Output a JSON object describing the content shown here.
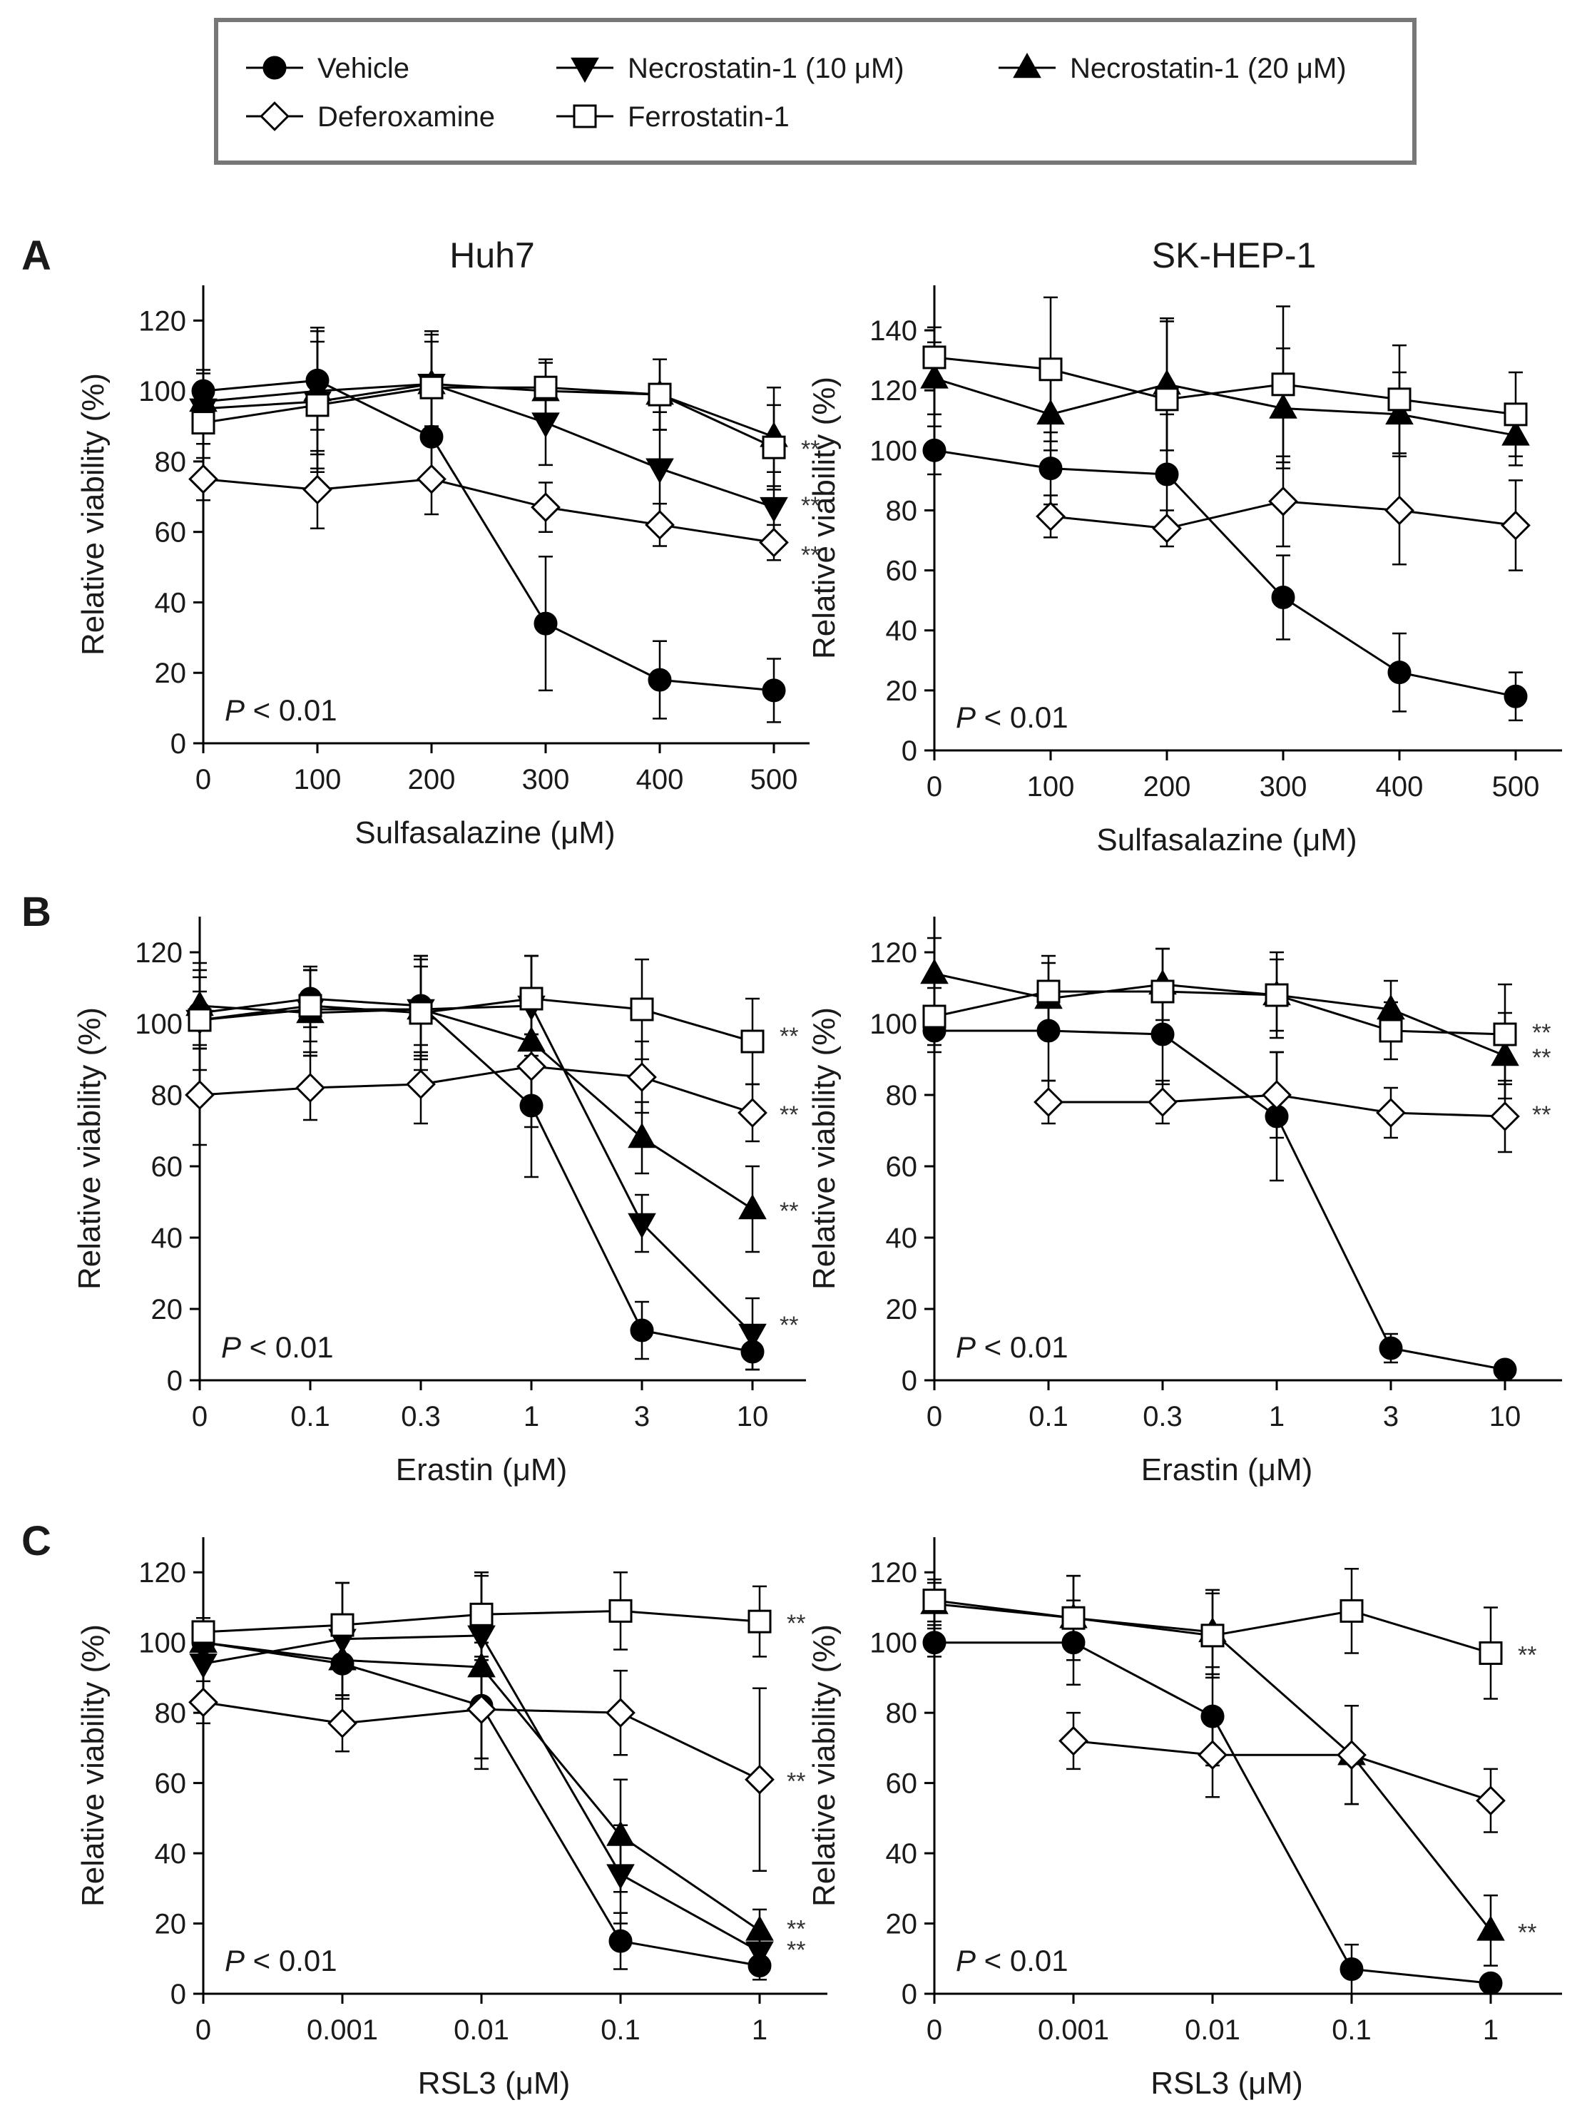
{
  "legend": {
    "entries": [
      {
        "key": "vehicle",
        "label": "Vehicle",
        "marker": "circle",
        "fill": "#000000"
      },
      {
        "key": "nec10",
        "label": "Necrostatin-1 (10 μM)",
        "marker": "triangle-down",
        "fill": "#000000"
      },
      {
        "key": "nec20",
        "label": "Necrostatin-1 (20 μM)",
        "marker": "triangle-up",
        "fill": "#000000"
      },
      {
        "key": "dfo",
        "label": "Deferoxamine",
        "marker": "diamond",
        "fill": "#ffffff"
      },
      {
        "key": "fer",
        "label": "Ferrostatin-1",
        "marker": "square",
        "fill": "#ffffff"
      }
    ]
  },
  "ylabel": "Relative viability (%)",
  "chart_data": [
    {
      "id": "A-huh7",
      "panel": "A",
      "title": "Huh7",
      "type": "line",
      "categories": [
        "0",
        "100",
        "200",
        "300",
        "400",
        "500"
      ],
      "xlabel": "Sulfasalazine (μM)",
      "ylim": [
        0,
        130
      ],
      "yticks": [
        0,
        20,
        40,
        60,
        80,
        100,
        120
      ],
      "pval": "< 0.01",
      "pval_italic": "P",
      "series": [
        {
          "key": "vehicle",
          "values": [
            100,
            103,
            87,
            34,
            18,
            15
          ],
          "err": [
            6,
            14,
            12,
            19,
            11,
            9
          ]
        },
        {
          "key": "nec10",
          "values": [
            95,
            97,
            102,
            91,
            78,
            67
          ],
          "err": [
            6,
            20,
            12,
            12,
            16,
            10
          ]
        },
        {
          "key": "nec20",
          "values": [
            97,
            100,
            102,
            100,
            99,
            87
          ],
          "err": [
            8,
            18,
            14,
            8,
            10,
            14
          ]
        },
        {
          "key": "dfo",
          "values": [
            75,
            72,
            75,
            67,
            62,
            57
          ],
          "err": [
            6,
            11,
            10,
            7,
            6,
            5
          ]
        },
        {
          "key": "fer",
          "values": [
            91,
            96,
            101,
            101,
            99,
            84
          ],
          "err": [
            6,
            18,
            16,
            8,
            10,
            12
          ]
        }
      ],
      "stars": [
        {
          "value": 84,
          "text": "**"
        },
        {
          "value": 68,
          "text": "**"
        },
        {
          "value": 54,
          "text": "**"
        }
      ]
    },
    {
      "id": "A-skhep1",
      "panel": "A",
      "title": "SK-HEP-1",
      "type": "line",
      "categories": [
        "0",
        "100",
        "200",
        "300",
        "400",
        "500"
      ],
      "xlabel": "Sulfasalazine (μM)",
      "ylim": [
        0,
        155
      ],
      "yticks": [
        0,
        20,
        40,
        60,
        80,
        100,
        120,
        140
      ],
      "pval": "< 0.01",
      "pval_italic": "P",
      "series": [
        {
          "key": "vehicle",
          "values": [
            100,
            94,
            92,
            51,
            26,
            18
          ],
          "err": [
            8,
            12,
            20,
            14,
            13,
            8
          ]
        },
        {
          "key": "nec20",
          "values": [
            124,
            112,
            122,
            114,
            112,
            105
          ],
          "err": [
            12,
            12,
            22,
            20,
            14,
            10
          ]
        },
        {
          "key": "dfo",
          "values": [
            null,
            78,
            74,
            83,
            80,
            75
          ],
          "err": [
            null,
            7,
            6,
            15,
            18,
            15
          ]
        },
        {
          "key": "fer",
          "values": [
            131,
            127,
            117,
            122,
            117,
            112
          ],
          "err": [
            10,
            24,
            26,
            26,
            18,
            14
          ]
        }
      ],
      "stars": []
    },
    {
      "id": "B-huh7",
      "panel": "B",
      "title": "",
      "type": "line",
      "categories": [
        "0",
        "0.1",
        "0.3",
        "1",
        "3",
        "10"
      ],
      "xlabel": "Erastin (μM)",
      "ylim": [
        0,
        130
      ],
      "yticks": [
        0,
        20,
        40,
        60,
        80,
        100,
        120
      ],
      "pval": "< 0.01",
      "pval_italic": "P",
      "series": [
        {
          "key": "vehicle",
          "values": [
            103,
            107,
            105,
            77,
            14,
            8
          ],
          "err": [
            10,
            8,
            14,
            20,
            8,
            5
          ]
        },
        {
          "key": "nec10",
          "values": [
            101,
            104,
            104,
            105,
            44,
            13
          ],
          "err": [
            14,
            12,
            12,
            14,
            8,
            10
          ]
        },
        {
          "key": "nec20",
          "values": [
            105,
            103,
            104,
            95,
            68,
            48
          ],
          "err": [
            12,
            12,
            14,
            24,
            10,
            12
          ]
        },
        {
          "key": "dfo",
          "values": [
            80,
            82,
            83,
            88,
            85,
            75
          ],
          "err": [
            14,
            9,
            11,
            9,
            10,
            8
          ]
        },
        {
          "key": "fer",
          "values": [
            101,
            105,
            103,
            107,
            104,
            95
          ],
          "err": [
            8,
            10,
            16,
            12,
            14,
            12
          ]
        }
      ],
      "stars": [
        {
          "value": 97,
          "text": "**"
        },
        {
          "value": 75,
          "text": "**"
        },
        {
          "value": 48,
          "text": "**"
        },
        {
          "value": 16,
          "text": "**"
        }
      ]
    },
    {
      "id": "B-skhep1",
      "panel": "B",
      "title": "",
      "type": "line",
      "categories": [
        "0",
        "0.1",
        "0.3",
        "1",
        "3",
        "10"
      ],
      "xlabel": "Erastin (μM)",
      "ylim": [
        0,
        130
      ],
      "yticks": [
        0,
        20,
        40,
        60,
        80,
        100,
        120
      ],
      "pval": "< 0.01",
      "pval_italic": "P",
      "series": [
        {
          "key": "vehicle",
          "values": [
            98,
            98,
            97,
            74,
            9,
            3
          ],
          "err": [
            6,
            14,
            14,
            18,
            4,
            2
          ]
        },
        {
          "key": "nec20",
          "values": [
            114,
            107,
            111,
            108,
            104,
            91
          ],
          "err": [
            10,
            10,
            10,
            10,
            8,
            12
          ]
        },
        {
          "key": "dfo",
          "values": [
            null,
            78,
            78,
            80,
            75,
            74
          ],
          "err": [
            null,
            6,
            6,
            12,
            7,
            10
          ]
        },
        {
          "key": "fer",
          "values": [
            102,
            109,
            109,
            108,
            98,
            97
          ],
          "err": [
            8,
            10,
            12,
            12,
            8,
            14
          ]
        }
      ],
      "stars": [
        {
          "value": 98,
          "text": "**"
        },
        {
          "value": 91,
          "text": "**"
        },
        {
          "value": 75,
          "text": "**"
        }
      ]
    },
    {
      "id": "C-huh7",
      "panel": "C",
      "title": "",
      "type": "line",
      "categories": [
        "0",
        "0.001",
        "0.01",
        "0.1",
        "1"
      ],
      "xlabel": "RSL3 (μM)",
      "ylim": [
        0,
        130
      ],
      "yticks": [
        0,
        20,
        40,
        60,
        80,
        100,
        120
      ],
      "pval": "< 0.01",
      "pval_italic": "P",
      "series": [
        {
          "key": "vehicle",
          "values": [
            100,
            94,
            82,
            15,
            8
          ],
          "err": [
            6,
            10,
            18,
            8,
            4
          ]
        },
        {
          "key": "nec10",
          "values": [
            94,
            101,
            102,
            34,
            12
          ],
          "err": [
            10,
            16,
            18,
            14,
            6
          ]
        },
        {
          "key": "nec20",
          "values": [
            100,
            95,
            93,
            45,
            18
          ],
          "err": [
            6,
            10,
            26,
            16,
            6
          ]
        },
        {
          "key": "dfo",
          "values": [
            83,
            77,
            81,
            80,
            61
          ],
          "err": [
            6,
            8,
            14,
            12,
            26
          ]
        },
        {
          "key": "fer",
          "values": [
            103,
            105,
            108,
            109,
            106
          ],
          "err": [
            4,
            12,
            12,
            11,
            10
          ]
        }
      ],
      "stars": [
        {
          "value": 106,
          "text": "**"
        },
        {
          "value": 61,
          "text": "**"
        },
        {
          "value": 19,
          "text": "**"
        },
        {
          "value": 13,
          "text": "**"
        }
      ]
    },
    {
      "id": "C-skhep1",
      "panel": "C",
      "title": "",
      "type": "line",
      "categories": [
        "0",
        "0.001",
        "0.01",
        "0.1",
        "1"
      ],
      "xlabel": "RSL3 (μM)",
      "ylim": [
        0,
        130
      ],
      "yticks": [
        0,
        20,
        40,
        60,
        80,
        100,
        120
      ],
      "pval": "< 0.01",
      "pval_italic": "P",
      "series": [
        {
          "key": "vehicle",
          "values": [
            100,
            100,
            79,
            7,
            3
          ],
          "err": [
            4,
            12,
            14,
            7,
            2
          ]
        },
        {
          "key": "nec20",
          "values": [
            111,
            107,
            103,
            68,
            18
          ],
          "err": [
            6,
            12,
            12,
            14,
            10
          ]
        },
        {
          "key": "dfo",
          "values": [
            null,
            72,
            68,
            68,
            55
          ],
          "err": [
            null,
            8,
            12,
            14,
            9
          ]
        },
        {
          "key": "fer",
          "values": [
            112,
            107,
            102,
            109,
            97
          ],
          "err": [
            6,
            12,
            12,
            12,
            13
          ]
        }
      ],
      "stars": [
        {
          "value": 97,
          "text": "**"
        },
        {
          "value": 18,
          "text": "**"
        }
      ]
    }
  ]
}
